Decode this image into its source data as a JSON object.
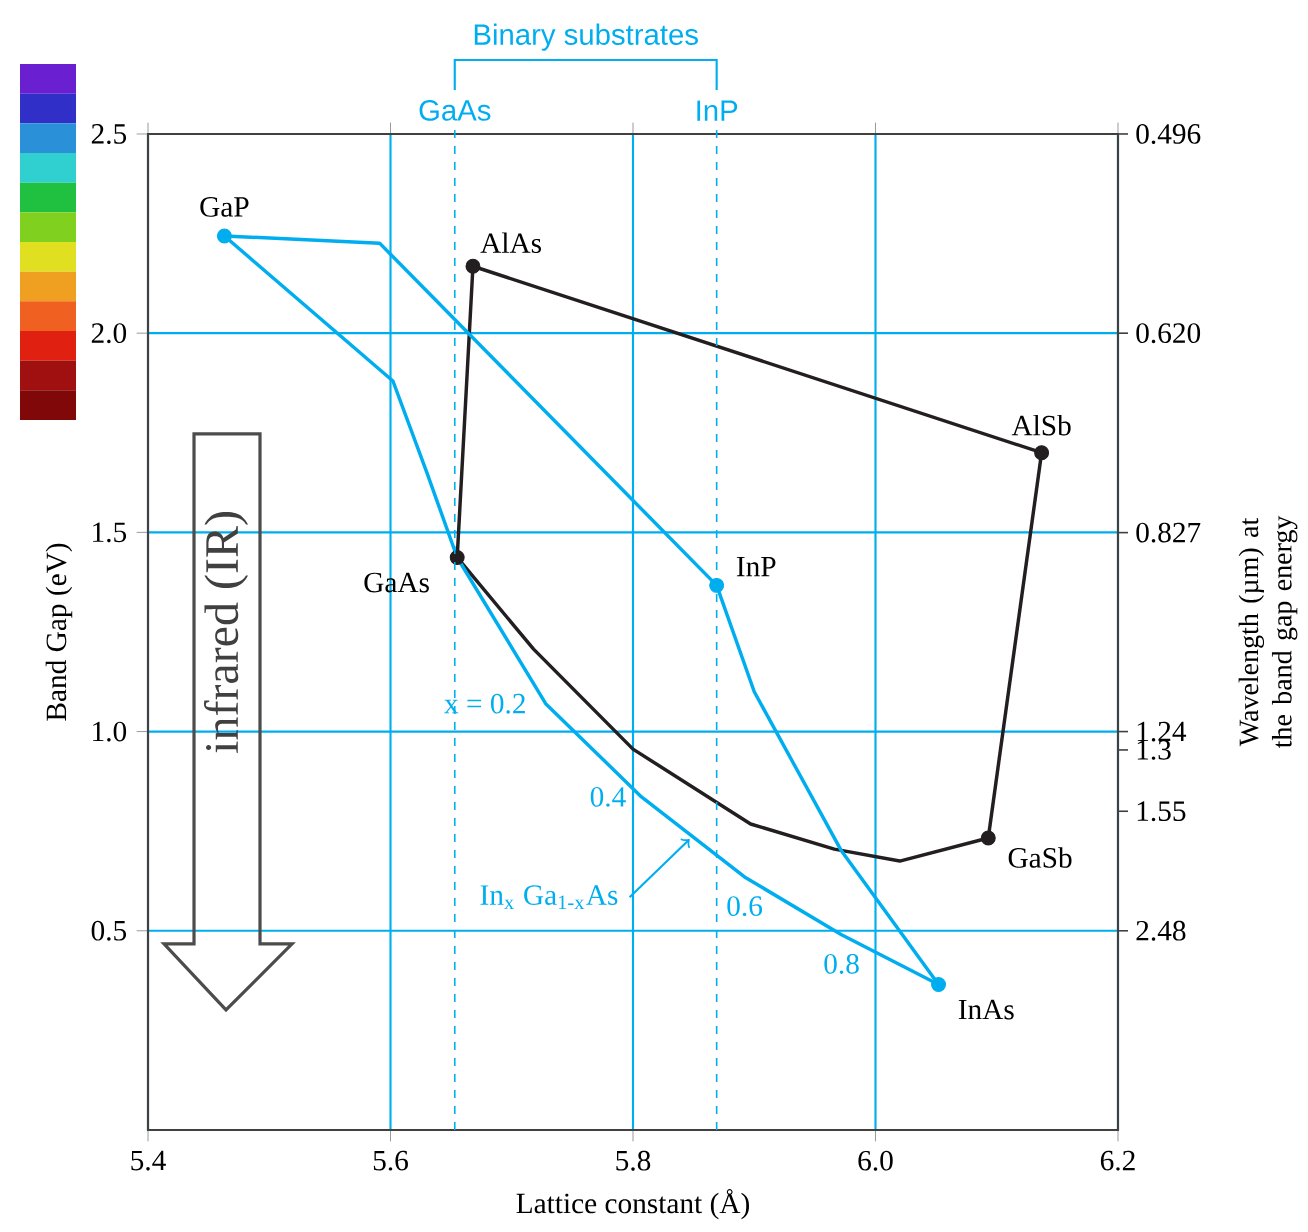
{
  "chart_data": {
    "type": "line",
    "xlabel": "Lattice constant (Å)",
    "ylabel": "Band Gap (eV)",
    "y2label": "Wavelength (µm) at the band gap energy",
    "xlim": [
      5.4,
      6.2
    ],
    "xticks": [
      5.4,
      5.6,
      5.8,
      {
        "value": 6.0,
        "label": "6.0"
      },
      6.2
    ],
    "ylim": [
      0,
      2.5
    ],
    "yticks": [
      0.5,
      {
        "value": 1.0,
        "label": "1.0"
      },
      1.5,
      {
        "value": 2.0,
        "label": "2.0"
      },
      2.5
    ],
    "grid": true,
    "series": [
      {
        "color": "#231f20",
        "marker": "none",
        "x": [
          5.655,
          5.668,
          6.137
        ],
        "values": [
          1.437,
          2.168,
          1.7
        ]
      },
      {
        "color": "#231f20",
        "marker": "none",
        "x": [
          6.093,
          6.137
        ],
        "values": [
          0.733,
          1.7
        ]
      },
      {
        "color": "#231f20",
        "marker": "none",
        "x": [
          5.655,
          5.718,
          5.8,
          5.897,
          5.966,
          6.02,
          6.093
        ],
        "values": [
          1.437,
          1.207,
          0.956,
          0.768,
          0.705,
          0.675,
          0.733
        ]
      },
      {
        "color": "#00aeef",
        "marker": "none",
        "x": [
          5.463,
          5.591,
          5.869,
          5.9,
          5.972,
          6.052
        ],
        "values": [
          2.244,
          2.226,
          1.367,
          1.1,
          0.7,
          0.365
        ]
      },
      {
        "color": "#00aeef",
        "marker": "none",
        "x": [
          5.463,
          5.602,
          5.63,
          5.655,
          5.728,
          5.807,
          5.892,
          5.972,
          6.052
        ],
        "values": [
          2.244,
          1.88,
          1.65,
          1.437,
          1.07,
          0.836,
          0.635,
          0.49,
          0.365
        ]
      },
      {
        "type": "scatter",
        "color": "#231f20",
        "marker": "circle",
        "x": [
          5.655,
          5.668,
          6.137,
          6.093
        ],
        "values": [
          1.437,
          2.168,
          1.7,
          0.733
        ]
      },
      {
        "type": "scatter",
        "color": "#00aeef",
        "marker": "circle",
        "x": [
          5.463,
          5.869,
          6.052
        ],
        "values": [
          2.244,
          1.367,
          0.365
        ]
      }
    ],
    "ref_lines": [
      {
        "axis": "x",
        "value": 5.653,
        "label": "GaAs",
        "color": "#00aeef",
        "line_style": "dashed"
      },
      {
        "axis": "x",
        "value": 5.869,
        "label": "InP",
        "color": "#00aeef",
        "line_style": "dashed"
      }
    ],
    "annotations": [
      {
        "text": "GaP",
        "x": 5.463,
        "y": 2.244
      },
      {
        "text": "AlAs",
        "x": 5.668,
        "y": 2.168
      },
      {
        "text": "AlSb",
        "x": 6.137,
        "y": 1.7
      },
      {
        "text": "GaAs",
        "x": 5.655,
        "y": 1.437
      },
      {
        "text": "InP",
        "x": 5.869,
        "y": 1.367
      },
      {
        "text": "GaSb",
        "x": 6.093,
        "y": 0.733
      },
      {
        "text": "InAs",
        "x": 6.052,
        "y": 0.365
      },
      {
        "text": "x = 0.2",
        "x": 5.728,
        "y": 1.07
      },
      {
        "text": "0.4",
        "x": 5.807,
        "y": 0.836
      },
      {
        "text": "0.6",
        "x": 5.892,
        "y": 0.635
      },
      {
        "text": "0.8",
        "x": 5.972,
        "y": 0.49
      },
      {
        "text": "In$_{x}$ Ga$_{1-x}$As",
        "x": 5.85,
        "y": 0.74
      },
      "0.496",
      "0.620",
      "0.827",
      "1.24",
      "1.3",
      "1.55",
      "2.48",
      "Binary substrates",
      "infrared (IR)"
    ]
  }
}
